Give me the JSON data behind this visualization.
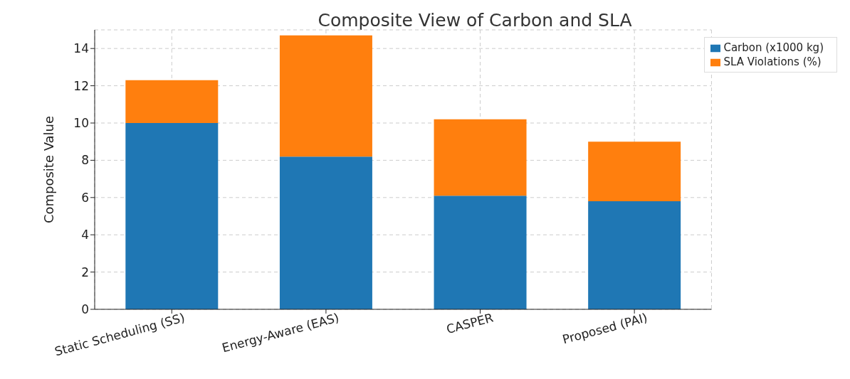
{
  "chart_data": {
    "type": "bar",
    "title": "Composite View of Carbon and SLA",
    "ylabel": "Composite Value",
    "categories": [
      "Static Scheduling (SS)",
      "Energy-Aware (EAS)",
      "CASPER",
      "Proposed (PAI)"
    ],
    "stacked": true,
    "series": [
      {
        "name": "Carbon (x1000 kg)",
        "color": "#1f77b4",
        "values": [
          10.0,
          8.2,
          6.1,
          5.8
        ]
      },
      {
        "name": "SLA Violations (%)",
        "color": "#ff7f0e",
        "values": [
          2.3,
          6.5,
          4.1,
          3.2
        ]
      }
    ],
    "ylim": [
      0,
      15
    ],
    "yticks": [
      0,
      2,
      4,
      6,
      8,
      10,
      12,
      14
    ],
    "grid": true,
    "legend": "top right"
  }
}
